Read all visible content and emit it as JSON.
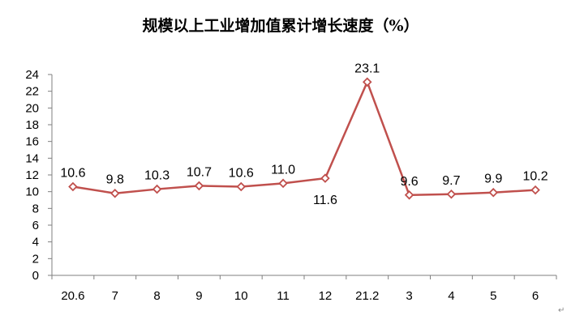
{
  "chart_data": {
    "type": "line",
    "title": "规模以上工业增加值累计增长速度（%）",
    "xlabel": "",
    "ylabel": "",
    "categories": [
      "20.6",
      "7",
      "8",
      "9",
      "10",
      "11",
      "12",
      "21.2",
      "3",
      "4",
      "5",
      "6"
    ],
    "series": [
      {
        "values": [
          10.6,
          9.8,
          10.3,
          10.7,
          10.6,
          11.0,
          11.6,
          23.1,
          9.6,
          9.7,
          9.9,
          10.2
        ],
        "labels": [
          "10.6",
          "9.8",
          "10.3",
          "10.7",
          "10.6",
          "11.0",
          "11.6",
          "23.1",
          "9.6",
          "9.7",
          "9.9",
          "10.2"
        ],
        "color": "#c0504d"
      }
    ],
    "ylim": [
      0,
      24
    ],
    "yticks": [
      "0",
      "2",
      "4",
      "6",
      "8",
      "10",
      "12",
      "14",
      "16",
      "18",
      "20",
      "22",
      "24"
    ],
    "grid": false,
    "legend": "none"
  },
  "paragraph_mark": "↵"
}
